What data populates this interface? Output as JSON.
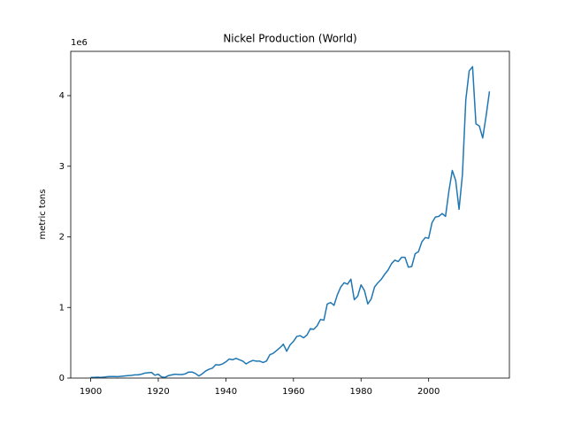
{
  "chart_data": {
    "type": "line",
    "title": "Nickel Production (World)",
    "y_label": "metric tons",
    "y_offset_label": "1e6",
    "x": [
      1900,
      1901,
      1902,
      1903,
      1904,
      1905,
      1906,
      1907,
      1908,
      1909,
      1910,
      1911,
      1912,
      1913,
      1914,
      1915,
      1916,
      1917,
      1918,
      1919,
      1920,
      1921,
      1922,
      1923,
      1924,
      1925,
      1926,
      1927,
      1928,
      1929,
      1930,
      1931,
      1932,
      1933,
      1934,
      1935,
      1936,
      1937,
      1938,
      1939,
      1940,
      1941,
      1942,
      1943,
      1944,
      1945,
      1946,
      1947,
      1948,
      1949,
      1950,
      1951,
      1952,
      1953,
      1954,
      1955,
      1956,
      1957,
      1958,
      1959,
      1960,
      1961,
      1962,
      1963,
      1964,
      1965,
      1966,
      1967,
      1968,
      1969,
      1970,
      1971,
      1972,
      1973,
      1974,
      1975,
      1976,
      1977,
      1978,
      1979,
      1980,
      1981,
      1982,
      1983,
      1984,
      1985,
      1986,
      1987,
      1988,
      1989,
      1990,
      1991,
      1992,
      1993,
      1994,
      1995,
      1996,
      1997,
      1998,
      1999,
      2000,
      2001,
      2002,
      2003,
      2004,
      2005,
      2006,
      2007,
      2008,
      2009,
      2010,
      2011,
      2012,
      2013,
      2014,
      2015,
      2016,
      2017,
      2018
    ],
    "series": [
      {
        "name": "Nickel",
        "color": "#1f77b4",
        "values": [
          9000,
          10000,
          12000,
          10000,
          14000,
          20000,
          22000,
          22000,
          20000,
          25000,
          30000,
          35000,
          38000,
          45000,
          45000,
          55000,
          70000,
          75000,
          80000,
          40000,
          55000,
          15000,
          10000,
          35000,
          45000,
          55000,
          50000,
          50000,
          60000,
          85000,
          85000,
          65000,
          30000,
          60000,
          100000,
          125000,
          140000,
          190000,
          185000,
          200000,
          230000,
          270000,
          260000,
          280000,
          260000,
          240000,
          200000,
          230000,
          250000,
          240000,
          240000,
          220000,
          240000,
          330000,
          350000,
          390000,
          430000,
          480000,
          380000,
          470000,
          520000,
          590000,
          600000,
          570000,
          610000,
          700000,
          690000,
          740000,
          830000,
          820000,
          1050000,
          1070000,
          1030000,
          1180000,
          1290000,
          1350000,
          1330000,
          1400000,
          1110000,
          1160000,
          1320000,
          1240000,
          1050000,
          1120000,
          1290000,
          1350000,
          1400000,
          1470000,
          1530000,
          1620000,
          1670000,
          1650000,
          1710000,
          1710000,
          1570000,
          1580000,
          1760000,
          1790000,
          1930000,
          1990000,
          1980000,
          2200000,
          2280000,
          2290000,
          2330000,
          2290000,
          2650000,
          2940000,
          2800000,
          2390000,
          2880000,
          3940000,
          4350000,
          4410000,
          3600000,
          3570000,
          3400000,
          3710000,
          4060000
        ]
      }
    ],
    "xlim": [
      1894.1,
      2023.9
    ],
    "xticks": [
      1900,
      1920,
      1940,
      1960,
      1980,
      2000
    ],
    "ylim": [
      0,
      4627000
    ],
    "yticks": [
      {
        "value": 0,
        "label": "0"
      },
      {
        "value": 1000000,
        "label": "1"
      },
      {
        "value": 2000000,
        "label": "2"
      },
      {
        "value": 3000000,
        "label": "3"
      },
      {
        "value": 4000000,
        "label": "4"
      }
    ]
  }
}
